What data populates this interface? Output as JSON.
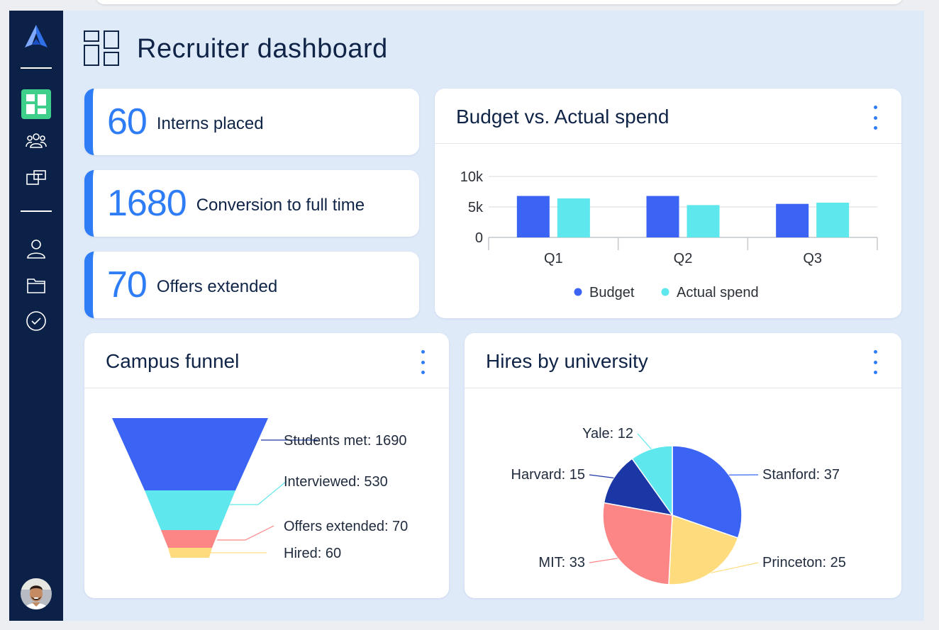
{
  "header": {
    "title": "Recruiter dashboard"
  },
  "colors": {
    "sidebar": "#0c2148",
    "accent": "#2f7df6",
    "budget": "#3b64f5",
    "actual": "#5ee7ec",
    "red": "#fc8585",
    "yellow": "#fedc7e",
    "navy": "#1b37a6"
  },
  "sidebar": {
    "items": [
      {
        "icon": "logo-icon"
      },
      {
        "icon": "dashboard-icon",
        "active": true
      },
      {
        "icon": "people-icon"
      },
      {
        "icon": "documents-icon"
      },
      {
        "icon": "user-icon"
      },
      {
        "icon": "folder-icon"
      },
      {
        "icon": "check-circle-icon"
      }
    ],
    "avatar": "user-avatar"
  },
  "kpis": [
    {
      "value": "60",
      "label": "Interns placed"
    },
    {
      "value": "1680",
      "label": "Conversion to full time"
    },
    {
      "value": "70",
      "label": "Offers extended"
    }
  ],
  "budget_card": {
    "title": "Budget vs. Actual spend"
  },
  "funnel_card": {
    "title": "Campus funnel"
  },
  "university_card": {
    "title": "Hires by university"
  },
  "chart_data": [
    {
      "type": "bar",
      "title": "Budget vs. Actual spend",
      "categories": [
        "Q1",
        "Q2",
        "Q3"
      ],
      "series": [
        {
          "name": "Budget",
          "values": [
            6800,
            6800,
            5500
          ],
          "color": "#3b64f5"
        },
        {
          "name": "Actual spend",
          "values": [
            6400,
            5300,
            5700
          ],
          "color": "#5ee7ec"
        }
      ],
      "ylim": [
        0,
        10000
      ],
      "yticks": [
        {
          "value": 0,
          "label": "0"
        },
        {
          "value": 5000,
          "label": "5k"
        },
        {
          "value": 10000,
          "label": "10k"
        }
      ],
      "grid": true,
      "legend": "bottom"
    },
    {
      "type": "funnel",
      "title": "Campus funnel",
      "stages": [
        {
          "label": "Students met: 1690",
          "value": 1690,
          "color": "#3b64f5"
        },
        {
          "label": "Interviewed: 530",
          "value": 530,
          "color": "#5ee7ec"
        },
        {
          "label": "Offers extended: 70",
          "value": 70,
          "color": "#fc8585"
        },
        {
          "label": "Hired: 60",
          "value": 60,
          "color": "#fedc7e"
        }
      ]
    },
    {
      "type": "pie",
      "title": "Hires by university",
      "slices": [
        {
          "name": "Stanford",
          "value": 37,
          "label": "Stanford: 37",
          "color": "#3b64f5"
        },
        {
          "name": "Princeton",
          "value": 25,
          "label": "Princeton: 25",
          "color": "#fedc7e"
        },
        {
          "name": "MIT",
          "value": 33,
          "label": "MIT: 33",
          "color": "#fc8585"
        },
        {
          "name": "Harvard",
          "value": 15,
          "label": "Harvard: 15",
          "color": "#1b37a6"
        },
        {
          "name": "Yale",
          "value": 12,
          "label": "Yale: 12",
          "color": "#5ee7ec"
        }
      ]
    }
  ]
}
